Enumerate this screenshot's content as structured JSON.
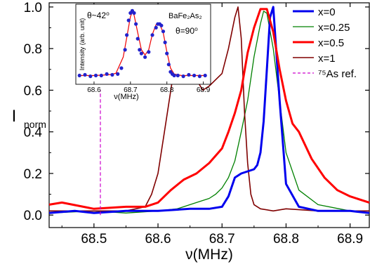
{
  "chart_data": {
    "type": "line",
    "title": "",
    "xlabel": "ν(MHz)",
    "ylabel": "I_norm",
    "xlim": [
      68.43,
      68.93
    ],
    "ylim": [
      -0.06,
      1.02
    ],
    "xticks": [
      "68.5",
      "68.6",
      "68.7",
      "68.8",
      "68.9"
    ],
    "xtick_values": [
      68.5,
      68.6,
      68.7,
      68.8,
      68.9
    ],
    "yticks": [
      "0.0",
      "0.2",
      "0.4",
      "0.6",
      "0.8",
      "1.0"
    ],
    "ytick_values": [
      0.0,
      0.2,
      0.4,
      0.6,
      0.8,
      1.0
    ],
    "grid": false,
    "legend_position": "top-right",
    "legend": [
      {
        "label": "x=0",
        "color": "#0000ee"
      },
      {
        "label": "x=0.25",
        "color": "#008000"
      },
      {
        "label": "x=0.5",
        "color": "#ff0000"
      },
      {
        "label": "x=1",
        "color": "#800000"
      },
      {
        "label": "⁷⁵As ref.",
        "color": "#cc00cc",
        "dashed": true
      }
    ],
    "reference_line": {
      "label": "⁷⁵As ref.",
      "x": 68.51,
      "y_top": 0.6,
      "color": "#cc00cc"
    },
    "series": [
      {
        "name": "x=0",
        "color": "#0000ee",
        "x": [
          68.43,
          68.47,
          68.5,
          68.55,
          68.6,
          68.65,
          68.68,
          68.7,
          68.71,
          68.72,
          68.73,
          68.74,
          68.75,
          68.755,
          68.76,
          68.765,
          68.77,
          68.775,
          68.78,
          68.79,
          68.8,
          68.82,
          68.85,
          68.9,
          68.93
        ],
        "y": [
          0.01,
          0.02,
          0.01,
          0.02,
          0.02,
          0.03,
          0.03,
          0.04,
          0.09,
          0.18,
          0.2,
          0.21,
          0.22,
          0.24,
          0.3,
          0.45,
          0.7,
          0.95,
          1.0,
          0.55,
          0.15,
          0.04,
          0.02,
          0.02,
          0.01
        ]
      },
      {
        "name": "x=0.25",
        "color": "#008000",
        "x": [
          68.43,
          68.5,
          68.55,
          68.6,
          68.63,
          68.66,
          68.68,
          68.69,
          68.7,
          68.71,
          68.72,
          68.73,
          68.74,
          68.75,
          68.76,
          68.765,
          68.77,
          68.78,
          68.79,
          68.8,
          68.82,
          68.85,
          68.9,
          68.93
        ],
        "y": [
          0.01,
          0.02,
          0.01,
          0.02,
          0.03,
          0.06,
          0.08,
          0.1,
          0.13,
          0.18,
          0.26,
          0.4,
          0.55,
          0.76,
          0.92,
          0.98,
          0.97,
          0.8,
          0.55,
          0.3,
          0.12,
          0.05,
          0.02,
          0.01
        ]
      },
      {
        "name": "x=0.5",
        "color": "#ff0000",
        "x": [
          68.43,
          68.45,
          68.5,
          68.55,
          68.58,
          68.6,
          68.62,
          68.64,
          68.66,
          68.68,
          68.7,
          68.71,
          68.72,
          68.73,
          68.74,
          68.75,
          68.76,
          68.77,
          68.78,
          68.79,
          68.8,
          68.81,
          68.82,
          68.84,
          68.86,
          68.88,
          68.9,
          68.93
        ],
        "y": [
          0.05,
          0.06,
          0.03,
          0.04,
          0.04,
          0.06,
          0.12,
          0.17,
          0.2,
          0.25,
          0.32,
          0.4,
          0.49,
          0.6,
          0.78,
          0.9,
          0.99,
          0.99,
          0.88,
          0.7,
          0.55,
          0.44,
          0.4,
          0.27,
          0.18,
          0.12,
          0.09,
          0.06
        ]
      },
      {
        "name": "x=1",
        "color": "#800000",
        "x": [
          68.43,
          68.5,
          68.55,
          68.58,
          68.59,
          68.6,
          68.61,
          68.62,
          68.63,
          68.64,
          68.65,
          68.66,
          68.67,
          68.68,
          68.69,
          68.7,
          68.71,
          68.72,
          68.725,
          68.73,
          68.735,
          68.74,
          68.745,
          68.75,
          68.76,
          68.78,
          68.8,
          68.85,
          68.9,
          68.93
        ],
        "y": [
          0.02,
          0.02,
          0.02,
          0.04,
          0.1,
          0.2,
          0.4,
          0.6,
          0.8,
          0.75,
          0.7,
          0.65,
          0.6,
          0.62,
          0.65,
          0.68,
          0.8,
          0.95,
          1.0,
          0.85,
          0.5,
          0.25,
          0.1,
          0.05,
          0.03,
          0.02,
          0.03,
          0.02,
          0.02,
          0.02
        ]
      }
    ],
    "inset": {
      "annotation_left": "θ~42⁰",
      "annotation_right": "θ=90⁰",
      "sample_label": "BaFe₂As₂",
      "ylabel": "Intensity (arb. unit)",
      "xlabel": "ν(MHz)",
      "xlim": [
        68.55,
        68.92
      ],
      "ylim": [
        0.0,
        1.05
      ],
      "xticks": [
        "68.6",
        "68.7",
        "68.8",
        "68.9"
      ],
      "xtick_values": [
        68.6,
        68.7,
        68.8,
        68.9
      ],
      "points": {
        "color": "#2222cc",
        "x": [
          68.56,
          68.575,
          68.59,
          68.605,
          68.62,
          68.635,
          68.65,
          68.665,
          68.675,
          68.685,
          68.69,
          68.695,
          68.7,
          68.705,
          68.71,
          68.715,
          68.72,
          68.725,
          68.73,
          68.74,
          68.75,
          68.76,
          68.77,
          68.775,
          68.78,
          68.785,
          68.79,
          68.795,
          68.8,
          68.805,
          68.81,
          68.815,
          68.82,
          68.83,
          68.845,
          68.86,
          68.875,
          68.89,
          68.905
        ],
        "y": [
          0.1,
          0.11,
          0.09,
          0.1,
          0.1,
          0.12,
          0.11,
          0.12,
          0.2,
          0.45,
          0.65,
          0.85,
          0.95,
          0.98,
          0.95,
          0.8,
          0.6,
          0.45,
          0.4,
          0.35,
          0.42,
          0.65,
          0.75,
          0.8,
          0.8,
          0.78,
          0.7,
          0.55,
          0.4,
          0.25,
          0.15,
          0.12,
          0.1,
          0.1,
          0.09,
          0.11,
          0.1,
          0.09,
          0.1
        ]
      },
      "fit": {
        "color": "#ee0000",
        "x": [
          68.56,
          68.6,
          68.64,
          68.66,
          68.68,
          68.69,
          68.7,
          68.705,
          68.71,
          68.72,
          68.73,
          68.74,
          68.75,
          68.76,
          68.77,
          68.78,
          68.79,
          68.8,
          68.81,
          68.82,
          68.84,
          68.87,
          68.905
        ],
        "y": [
          0.1,
          0.1,
          0.11,
          0.13,
          0.35,
          0.62,
          0.9,
          0.96,
          0.92,
          0.68,
          0.45,
          0.38,
          0.45,
          0.66,
          0.79,
          0.8,
          0.68,
          0.42,
          0.2,
          0.12,
          0.1,
          0.1,
          0.1
        ]
      }
    }
  }
}
